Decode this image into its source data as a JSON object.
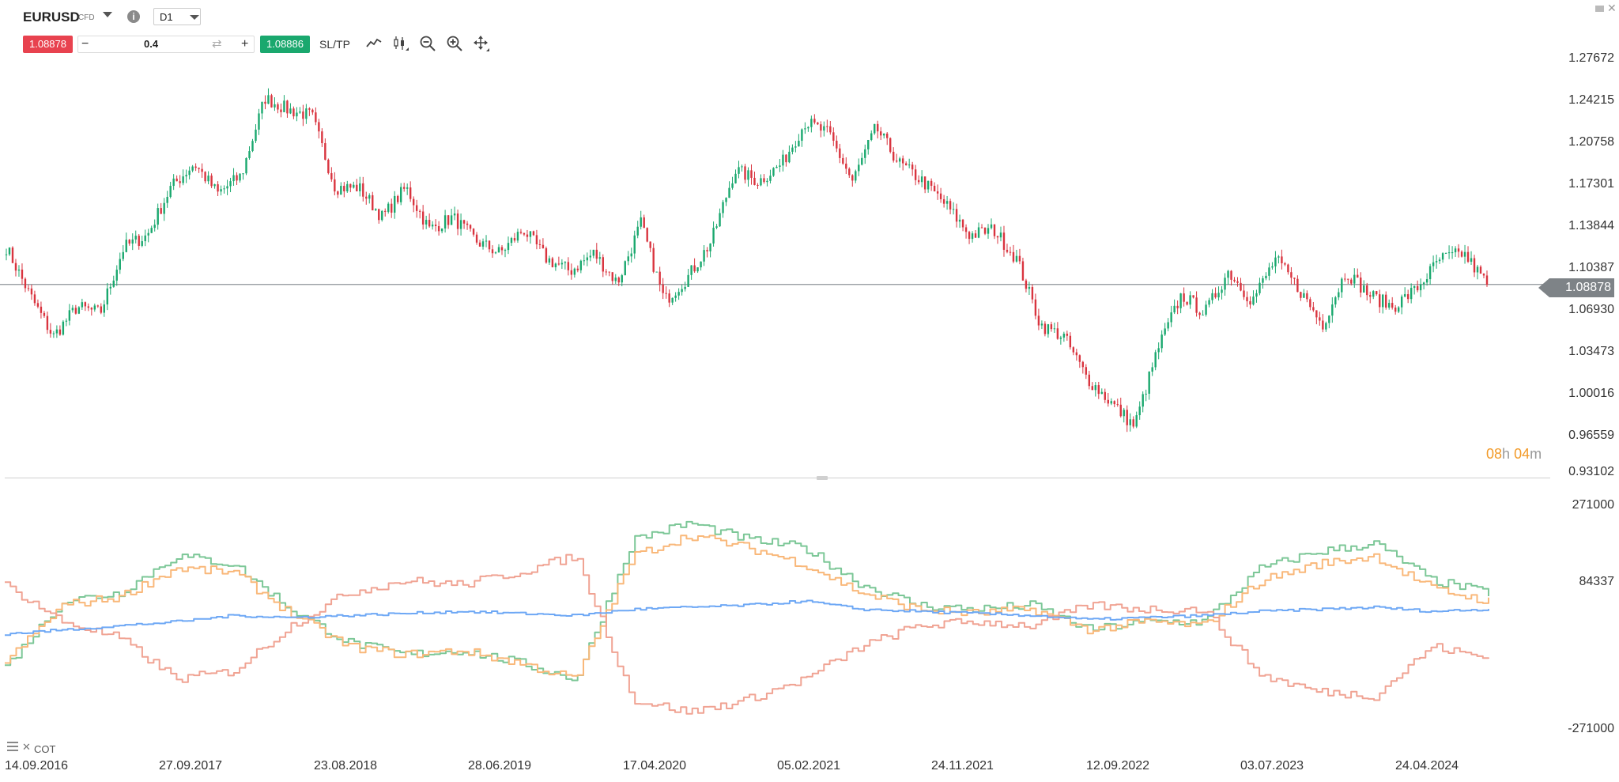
{
  "header": {
    "symbol": "EURUSD",
    "symbol_type": "CFD",
    "timeframe": "D1"
  },
  "trade": {
    "sell_price": "1.08878",
    "quantity": "0.4",
    "buy_price": "1.08886",
    "sltp_label": "SL/TP",
    "minus": "−",
    "plus": "+"
  },
  "toolbar_icons": [
    "line-chart-icon",
    "candlestick-icon",
    "zoom-out-icon",
    "zoom-in-icon",
    "move-icon"
  ],
  "price_axis": {
    "labels": [
      "1.27672",
      "1.24215",
      "1.20758",
      "1.17301",
      "1.13844",
      "1.10387",
      "1.06930",
      "1.03473",
      "1.00016",
      "0.96559",
      "0.93102"
    ],
    "current_price": "1.08878"
  },
  "countdown": {
    "hours": "08",
    "h_unit": "h",
    "minutes": "04",
    "m_unit": "m"
  },
  "indicator": {
    "name": "COT",
    "axis_labels": [
      "271000",
      "84337",
      "-271000"
    ]
  },
  "date_axis": [
    "14.09.2016",
    "27.09.2017",
    "23.08.2018",
    "28.06.2019",
    "17.04.2020",
    "05.02.2021",
    "24.11.2021",
    "12.09.2022",
    "03.07.2023",
    "24.04.2024"
  ],
  "colors": {
    "sell": "#e8424f",
    "buy": "#1aa86e",
    "bull_candle": "#1aa86e",
    "bear_candle": "#d9343f",
    "cot_green": "#7cc797",
    "cot_orange": "#f9b87a",
    "cot_red": "#f0a393",
    "cot_blue": "#6ea8f5",
    "countdown": "#f29a28"
  },
  "chart_data": [
    {
      "type": "candlestick",
      "series": [
        {
          "name": "EURUSD",
          "values": [
            [
              "2016-09",
              1.12
            ],
            [
              "2016-11",
              1.08
            ],
            [
              "2016-12",
              1.045
            ],
            [
              "2017-02",
              1.07
            ],
            [
              "2017-03",
              1.065
            ],
            [
              "2017-05",
              1.12
            ],
            [
              "2017-06",
              1.13
            ],
            [
              "2017-07",
              1.17
            ],
            [
              "2017-09",
              1.19
            ],
            [
              "2017-10",
              1.165
            ],
            [
              "2017-12",
              1.18
            ],
            [
              "2018-02",
              1.245
            ],
            [
              "2018-03",
              1.235
            ],
            [
              "2018-04",
              1.23
            ],
            [
              "2018-05",
              1.17
            ],
            [
              "2018-07",
              1.17
            ],
            [
              "2018-08",
              1.145
            ],
            [
              "2018-09",
              1.17
            ],
            [
              "2018-11",
              1.135
            ],
            [
              "2019-01",
              1.145
            ],
            [
              "2019-03",
              1.125
            ],
            [
              "2019-05",
              1.115
            ],
            [
              "2019-06",
              1.135
            ],
            [
              "2019-08",
              1.11
            ],
            [
              "2019-10",
              1.1
            ],
            [
              "2019-12",
              1.115
            ],
            [
              "2020-02",
              1.09
            ],
            [
              "2020-03",
              1.14
            ],
            [
              "2020-03",
              1.075
            ],
            [
              "2020-05",
              1.095
            ],
            [
              "2020-06",
              1.125
            ],
            [
              "2020-08",
              1.185
            ],
            [
              "2020-09",
              1.175
            ],
            [
              "2020-11",
              1.19
            ],
            [
              "2021-01",
              1.225
            ],
            [
              "2021-02",
              1.215
            ],
            [
              "2021-03",
              1.175
            ],
            [
              "2021-05",
              1.22
            ],
            [
              "2021-06",
              1.19
            ],
            [
              "2021-08",
              1.175
            ],
            [
              "2021-10",
              1.155
            ],
            [
              "2021-11",
              1.13
            ],
            [
              "2022-01",
              1.135
            ],
            [
              "2022-03",
              1.11
            ],
            [
              "2022-05",
              1.055
            ],
            [
              "2022-06",
              1.045
            ],
            [
              "2022-08",
              1.01
            ],
            [
              "2022-09",
              0.99
            ],
            [
              "2022-10",
              0.97
            ],
            [
              "2022-11",
              1.035
            ],
            [
              "2023-01",
              1.08
            ],
            [
              "2023-02",
              1.065
            ],
            [
              "2023-04",
              1.1
            ],
            [
              "2023-05",
              1.075
            ],
            [
              "2023-07",
              1.11
            ],
            [
              "2023-08",
              1.085
            ],
            [
              "2023-10",
              1.055
            ],
            [
              "2023-12",
              1.1
            ],
            [
              "2024-02",
              1.08
            ],
            [
              "2024-04",
              1.07
            ],
            [
              "2024-06",
              1.085
            ],
            [
              "2024-08",
              1.11
            ],
            [
              "2024-09",
              1.115
            ],
            [
              "2024-10",
              1.089
            ]
          ]
        }
      ],
      "ylim": [
        0.93102,
        1.27672
      ]
    },
    {
      "type": "line",
      "title": "COT",
      "series": [
        {
          "values": [
            -120000,
            40000,
            60000,
            150000,
            130000,
            20000,
            -60000,
            -90000,
            -80000,
            -110000,
            -150000,
            190000,
            230000,
            190000,
            170000,
            80000,
            30000,
            20000,
            30000,
            -30000,
            -10000,
            -10000,
            120000,
            160000,
            180000,
            90000,
            60000
          ]
        },
        {
          "values": [
            -110000,
            30000,
            50000,
            120000,
            110000,
            10000,
            -70000,
            -90000,
            -80000,
            -110000,
            -150000,
            150000,
            200000,
            170000,
            130000,
            60000,
            20000,
            10000,
            20000,
            -30000,
            -10000,
            -20000,
            90000,
            130000,
            150000,
            70000,
            40000
          ]
        },
        {
          "values": [
            80000,
            -10000,
            -50000,
            -150000,
            -130000,
            -20000,
            60000,
            90000,
            80000,
            110000,
            150000,
            -200000,
            -230000,
            -200000,
            -150000,
            -70000,
            -20000,
            -10000,
            -20000,
            30000,
            20000,
            20000,
            -140000,
            -180000,
            -190000,
            -70000,
            -100000
          ]
        },
        {
          "values": [
            -40000,
            -30000,
            -20000,
            -10000,
            5000,
            0,
            5000,
            10000,
            15000,
            10000,
            5000,
            20000,
            25000,
            30000,
            40000,
            20000,
            15000,
            10000,
            5000,
            -5000,
            0,
            5000,
            15000,
            20000,
            25000,
            15000,
            20000
          ]
        }
      ],
      "ylim": [
        -271000,
        271000
      ]
    }
  ]
}
